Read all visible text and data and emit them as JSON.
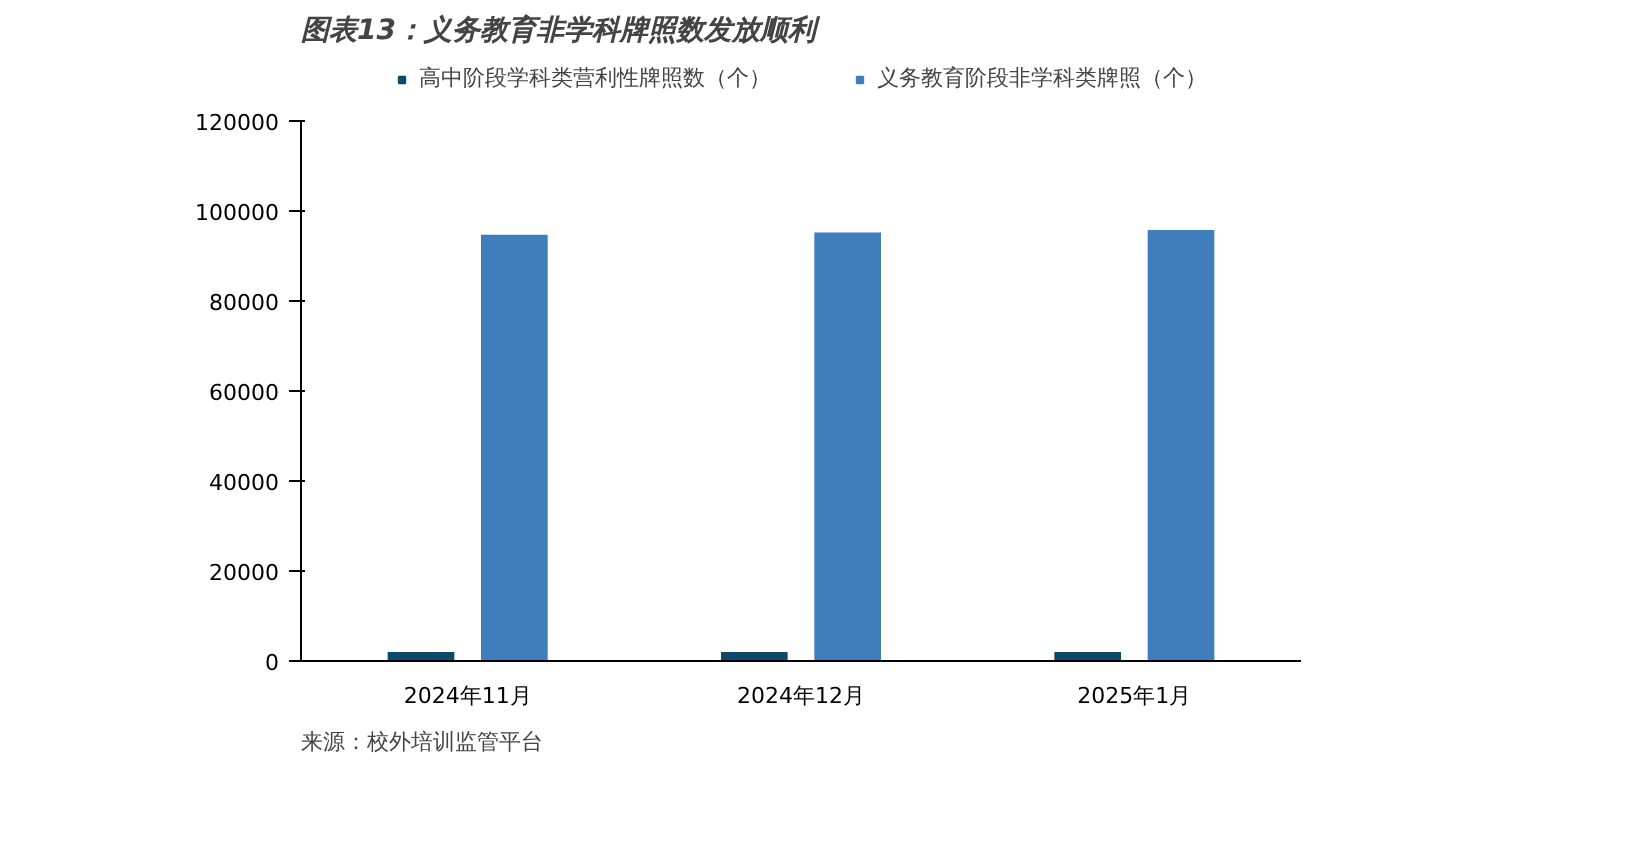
{
  "chart_data": {
    "type": "bar",
    "title": "图表13：义务教育非学科牌照数发放顺利",
    "categories": [
      "2024年11月",
      "2024年12月",
      "2025年1月"
    ],
    "series": [
      {
        "name": "高中阶段学科类营利性牌照数（个）",
        "color": "#0b4a6b",
        "values": [
          2000,
          2000,
          2000
        ]
      },
      {
        "name": "义务教育阶段非学科类牌照（个）",
        "color": "#3f7dbd",
        "values": [
          94700,
          95200,
          95800
        ]
      }
    ],
    "ylim": [
      0,
      120000
    ],
    "yticks": [
      0,
      20000,
      40000,
      60000,
      80000,
      100000,
      120000
    ],
    "grid": false,
    "legend": "top",
    "annotations": [
      "来源：校外培训监管平台"
    ]
  }
}
